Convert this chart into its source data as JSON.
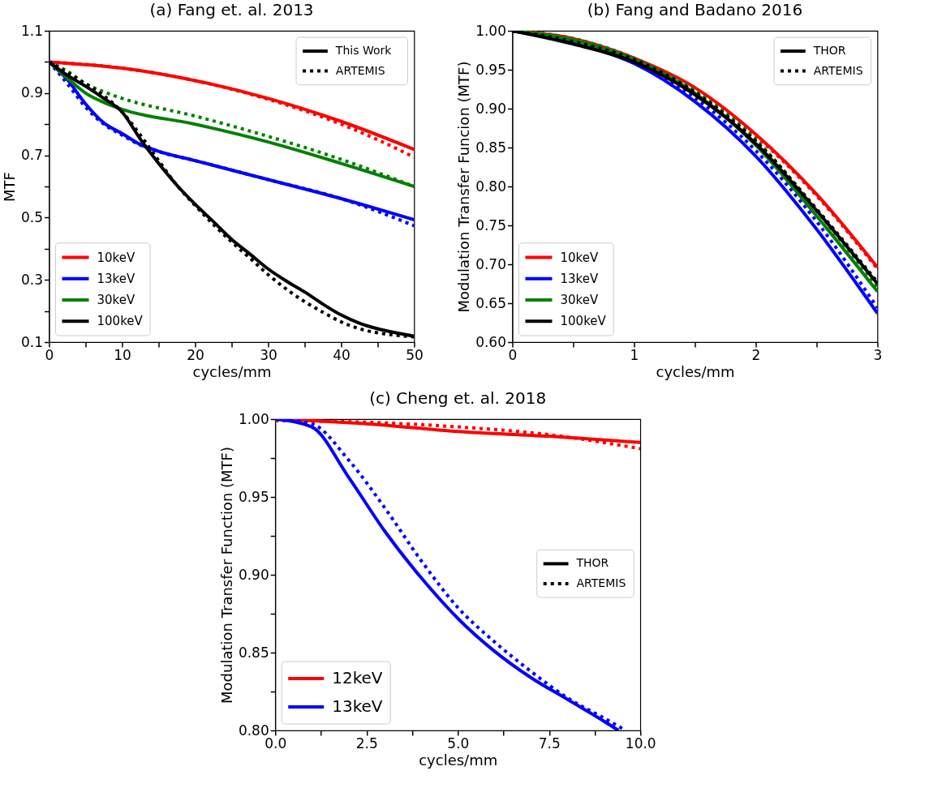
{
  "chart_data": [
    {
      "type": "line",
      "title": "(a) Fang et. al. 2013",
      "xlabel": "cycles/mm",
      "ylabel": "MTF",
      "xlim": [
        0,
        50
      ],
      "ylim": [
        0.1,
        1.1
      ],
      "xticks": [
        0,
        {
          "value": 5,
          "label": null
        },
        10,
        {
          "value": 15,
          "label": null
        },
        20,
        {
          "value": 25,
          "label": null
        },
        30,
        {
          "value": 35,
          "label": null
        },
        40,
        {
          "value": 45,
          "label": null
        },
        50
      ],
      "yticks": [
        0.1,
        {
          "value": 0.2,
          "label": null
        },
        0.3,
        {
          "value": 0.4,
          "label": null
        },
        0.5,
        {
          "value": 0.6,
          "label": null
        },
        0.7,
        {
          "value": 0.8,
          "label": null
        },
        0.9,
        {
          "value": 1.0,
          "label": null
        },
        1.1
      ],
      "legend": "bottom left",
      "series": [
        {
          "name": "10keV",
          "color": "#ff0000",
          "line_style": "solid",
          "x": [
            0,
            10,
            20,
            30,
            40,
            50
          ],
          "values": [
            1.0,
            0.98,
            0.94,
            0.883,
            0.809,
            0.719
          ]
        },
        {
          "color": "#ff0000",
          "line_style": "dotted",
          "x": [
            0,
            10,
            20,
            30,
            40,
            45,
            50
          ],
          "values": [
            1.0,
            0.98,
            0.94,
            0.88,
            0.8,
            0.75,
            0.694
          ]
        },
        {
          "name": "13keV",
          "color": "#0000ff",
          "line_style": "solid",
          "x": [
            0,
            2.5,
            5,
            7.5,
            10,
            12.5,
            15,
            20,
            30,
            40,
            50
          ],
          "values": [
            1.0,
            0.943,
            0.865,
            0.804,
            0.77,
            0.735,
            0.713,
            0.683,
            0.622,
            0.561,
            0.493
          ]
        },
        {
          "color": "#0000ff",
          "line_style": "dotted",
          "x": [
            0,
            2.5,
            5,
            7.5,
            10,
            12.5,
            15,
            20,
            30,
            40,
            50
          ],
          "values": [
            1.0,
            0.93,
            0.855,
            0.8,
            0.765,
            0.733,
            0.712,
            0.683,
            0.622,
            0.561,
            0.474
          ]
        },
        {
          "name": "30keV",
          "color": "#008000",
          "line_style": "solid",
          "x": [
            0,
            2.5,
            5,
            7.5,
            10,
            20,
            30,
            40,
            50
          ],
          "values": [
            1.0,
            0.948,
            0.9,
            0.87,
            0.848,
            0.8,
            0.743,
            0.674,
            0.6
          ]
        },
        {
          "color": "#008000",
          "line_style": "dotted",
          "x": [
            0,
            2.5,
            5,
            7.5,
            10,
            20,
            30,
            40,
            50
          ],
          "values": [
            1.0,
            0.97,
            0.93,
            0.904,
            0.883,
            0.826,
            0.761,
            0.687,
            0.6
          ]
        },
        {
          "name": "100keV",
          "color": "#000000",
          "line_style": "solid",
          "x": [
            0,
            2.5,
            5,
            7.5,
            10,
            12.5,
            15,
            17.5,
            20,
            22.5,
            25,
            27.5,
            30,
            32.5,
            35,
            37.5,
            40,
            42.5,
            45,
            47.5,
            50
          ],
          "values": [
            1.0,
            0.957,
            0.922,
            0.883,
            0.839,
            0.752,
            0.674,
            0.604,
            0.543,
            0.487,
            0.43,
            0.383,
            0.335,
            0.296,
            0.261,
            0.222,
            0.187,
            0.161,
            0.143,
            0.13,
            0.119
          ]
        },
        {
          "color": "#000000",
          "line_style": "dotted",
          "x": [
            0,
            2.5,
            5,
            7.5,
            10,
            12.5,
            15,
            17.5,
            20,
            22.5,
            25,
            27.5,
            30,
            32.5,
            35,
            37.5,
            40,
            42.5,
            45,
            47.5,
            50
          ],
          "values": [
            1.0,
            0.965,
            0.93,
            0.891,
            0.839,
            0.765,
            0.683,
            0.604,
            0.539,
            0.478,
            0.422,
            0.37,
            0.317,
            0.27,
            0.23,
            0.196,
            0.165,
            0.143,
            0.13,
            0.122,
            0.117
          ]
        }
      ],
      "annotations": [
        "This Work",
        "ARTEMIS"
      ]
    },
    {
      "type": "line",
      "title": "(b) Fang and Badano 2016",
      "xlabel": "cycles/mm",
      "ylabel": "Modulation Transfer Funcion (MTF)",
      "xlim": [
        0,
        3
      ],
      "ylim": [
        0.6,
        1.0
      ],
      "xticks": [
        0,
        {
          "value": 0.5,
          "label": null
        },
        1,
        {
          "value": 1.5,
          "label": null
        },
        2,
        {
          "value": 2.5,
          "label": null
        },
        3
      ],
      "yticks": [
        {
          "value": 0.6,
          "label": "0.60"
        },
        {
          "value": 0.65,
          "label": "0.65"
        },
        {
          "value": 0.7,
          "label": "0.70"
        },
        {
          "value": 0.75,
          "label": "0.75"
        },
        {
          "value": 0.8,
          "label": "0.80"
        },
        {
          "value": 0.85,
          "label": "0.85"
        },
        {
          "value": 0.9,
          "label": "0.90"
        },
        {
          "value": 0.95,
          "label": "0.95"
        },
        {
          "value": 1.0,
          "label": "1.00"
        }
      ],
      "legend": "bottom left",
      "series": [
        {
          "name": "10keV",
          "color": "#ff0000",
          "line_style": "solid",
          "x": [
            0,
            0.5,
            1,
            1.5,
            2,
            2.5,
            3
          ],
          "values": [
            1.0,
            0.99,
            0.965,
            0.927,
            0.867,
            0.79,
            0.696
          ]
        },
        {
          "color": "#ff0000",
          "line_style": "dotted",
          "x": [
            0,
            0.5,
            1,
            1.5,
            2,
            2.5,
            3
          ],
          "values": [
            1.0,
            0.99,
            0.964,
            0.925,
            0.865,
            0.788,
            0.694
          ]
        },
        {
          "name": "13keV",
          "color": "#0000ff",
          "line_style": "solid",
          "x": [
            0,
            0.5,
            1,
            1.5,
            2,
            2.5,
            3
          ],
          "values": [
            1.0,
            0.984,
            0.958,
            0.909,
            0.839,
            0.745,
            0.637
          ]
        },
        {
          "color": "#0000ff",
          "line_style": "dotted",
          "x": [
            0,
            0.5,
            1,
            1.5,
            2,
            2.5,
            3
          ],
          "values": [
            1.0,
            0.986,
            0.96,
            0.914,
            0.846,
            0.755,
            0.644
          ]
        },
        {
          "name": "30keV",
          "color": "#008000",
          "line_style": "solid",
          "x": [
            0,
            0.5,
            1,
            1.5,
            2,
            2.5,
            3
          ],
          "values": [
            1.0,
            0.988,
            0.963,
            0.92,
            0.853,
            0.762,
            0.665
          ]
        },
        {
          "color": "#008000",
          "line_style": "dotted",
          "x": [
            0,
            0.5,
            1,
            1.5,
            2,
            2.5,
            3
          ],
          "values": [
            1.0,
            0.99,
            0.965,
            0.923,
            0.86,
            0.769,
            0.671
          ]
        },
        {
          "name": "100keV",
          "color": "#000000",
          "line_style": "solid",
          "x": [
            0,
            0.5,
            1,
            1.5,
            2,
            2.5,
            3
          ],
          "values": [
            1.0,
            0.983,
            0.96,
            0.918,
            0.855,
            0.769,
            0.675
          ]
        },
        {
          "color": "#000000",
          "line_style": "dotted",
          "x": [
            0,
            0.5,
            1,
            1.5,
            2,
            2.5,
            3
          ],
          "values": [
            1.0,
            0.986,
            0.963,
            0.921,
            0.858,
            0.771,
            0.677
          ]
        }
      ],
      "annotations": [
        "THOR",
        "ARTEMIS"
      ]
    },
    {
      "type": "line",
      "title": "(c) Cheng et. al. 2018",
      "xlabel": "cycles/mm",
      "ylabel": "Modulation Transfer Function (MTF)",
      "xlim": [
        0,
        10
      ],
      "ylim": [
        0.8,
        1.0
      ],
      "xticks": [
        {
          "value": 0,
          "label": "0.0"
        },
        {
          "value": 1.25,
          "label": null
        },
        {
          "value": 2.5,
          "label": "2.5"
        },
        {
          "value": 3.75,
          "label": null
        },
        {
          "value": 5,
          "label": "5.0"
        },
        {
          "value": 6.25,
          "label": null
        },
        {
          "value": 7.5,
          "label": "7.5"
        },
        {
          "value": 8.75,
          "label": null
        },
        {
          "value": 10,
          "label": "10.0"
        }
      ],
      "yticks": [
        {
          "value": 0.8,
          "label": "0.80"
        },
        {
          "value": 0.825,
          "label": null
        },
        {
          "value": 0.85,
          "label": "0.85"
        },
        {
          "value": 0.875,
          "label": null
        },
        {
          "value": 0.9,
          "label": "0.90"
        },
        {
          "value": 0.925,
          "label": null
        },
        {
          "value": 0.95,
          "label": "0.95"
        },
        {
          "value": 0.975,
          "label": null
        },
        {
          "value": 1.0,
          "label": "1.00"
        }
      ],
      "legend": "bottom left",
      "series": [
        {
          "name": "12keV",
          "color": "#ff0000",
          "line_style": "solid",
          "x": [
            0,
            2.5,
            5,
            7.5,
            10
          ],
          "values": [
            1.0,
            0.997,
            0.992,
            0.989,
            0.985
          ]
        },
        {
          "color": "#ff0000",
          "line_style": "dotted",
          "x": [
            0,
            2.5,
            5,
            7.5,
            10
          ],
          "values": [
            0.999,
            0.998,
            0.995,
            0.99,
            0.981
          ]
        },
        {
          "name": "13keV",
          "color": "#0000ff",
          "line_style": "solid",
          "x": [
            0,
            1,
            2,
            3,
            4,
            5,
            6,
            7,
            8,
            9,
            9.4
          ],
          "values": [
            1.0,
            0.995,
            0.963,
            0.928,
            0.898,
            0.872,
            0.851,
            0.834,
            0.82,
            0.806,
            0.8
          ]
        },
        {
          "color": "#0000ff",
          "line_style": "dotted",
          "x": [
            0,
            1,
            2,
            3,
            4,
            5,
            6,
            7,
            8,
            9,
            9.6
          ],
          "values": [
            1.0,
            0.997,
            0.974,
            0.943,
            0.909,
            0.879,
            0.857,
            0.838,
            0.821,
            0.808,
            0.8
          ]
        }
      ],
      "annotations": [
        "THOR",
        "ARTEMIS"
      ]
    }
  ]
}
